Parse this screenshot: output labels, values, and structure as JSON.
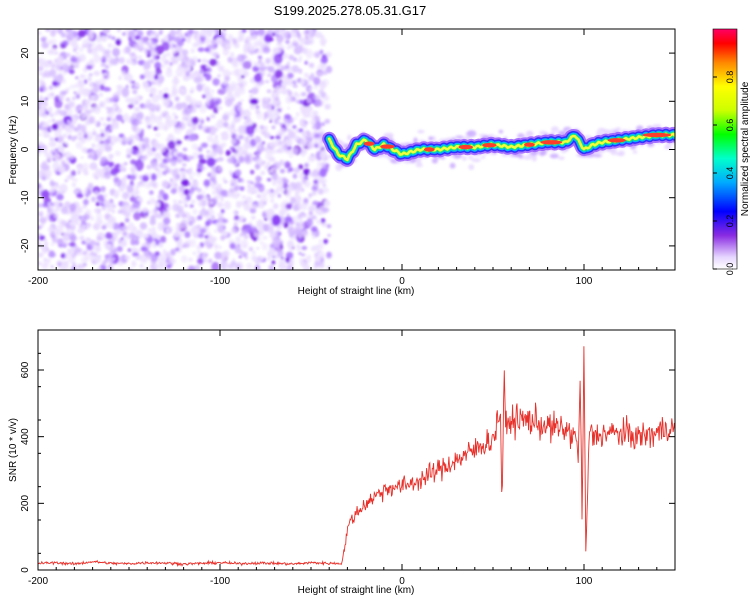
{
  "title": "S199.2025.278.05.31.G17",
  "colors": {
    "snr_line": "#e8302a",
    "frame": "#000000",
    "background": "#ffffff"
  },
  "chart_data": [
    {
      "type": "heatmap",
      "xlabel": "Height of straight line (km)",
      "ylabel": "Frequency (Hz)",
      "xlim": [
        -200,
        150
      ],
      "ylim": [
        -25,
        25
      ],
      "x_ticks": [
        -200,
        -100,
        0,
        100
      ],
      "y_ticks": [
        -20,
        -10,
        0,
        10,
        20
      ],
      "noise_region_x": [
        -200,
        -40
      ],
      "signal_start_x": -40,
      "ridge": {
        "x": [
          -40,
          -35,
          -30,
          -25,
          -20,
          -15,
          -10,
          -5,
          0,
          10,
          20,
          30,
          40,
          50,
          60,
          70,
          80,
          90,
          95,
          100,
          105,
          110,
          120,
          130,
          140,
          150
        ],
        "frequency": [
          2,
          -1,
          -2,
          1,
          2,
          0,
          1,
          0,
          -1,
          0,
          0,
          0.5,
          0.5,
          1,
          0.5,
          1,
          1.5,
          1.5,
          3,
          0,
          1,
          1.5,
          2,
          2.5,
          3,
          3
        ]
      },
      "colorbar": {
        "label": "Normalized spectral amplitude",
        "min": 0,
        "max": 1,
        "ticks": [
          "0.0",
          "0.2",
          "0.4",
          "0.6",
          "0.8"
        ]
      }
    },
    {
      "type": "line",
      "xlabel": "Height of straight line (km)",
      "ylabel": "SNR (10 * v/v)",
      "xlim": [
        -200,
        150
      ],
      "ylim": [
        0,
        720
      ],
      "x_ticks": [
        -200,
        -100,
        0,
        100
      ],
      "y_ticks": [
        0,
        200,
        400,
        600
      ],
      "series": [
        {
          "x": [
            -200,
            -190,
            -180,
            -170,
            -160,
            -150,
            -140,
            -130,
            -120,
            -110,
            -100,
            -90,
            -80,
            -70,
            -60,
            -50,
            -40,
            -33,
            -30,
            -28,
            -25,
            -20,
            -15,
            -10,
            -5,
            0,
            10,
            20,
            30,
            40,
            45,
            50,
            54,
            55,
            56,
            57,
            60,
            70,
            80,
            90,
            95,
            97,
            98,
            99,
            100,
            101,
            103,
            105,
            110,
            120,
            130,
            140,
            145,
            150
          ],
          "y": [
            20,
            22,
            18,
            25,
            20,
            19,
            22,
            21,
            18,
            20,
            22,
            19,
            21,
            20,
            18,
            22,
            20,
            20,
            120,
            150,
            170,
            200,
            220,
            240,
            250,
            250,
            270,
            300,
            330,
            360,
            380,
            390,
            480,
            200,
            560,
            430,
            450,
            450,
            430,
            420,
            400,
            350,
            600,
            100,
            700,
            50,
            420,
            400,
            410,
            410,
            400,
            410,
            430,
            420
          ]
        }
      ]
    }
  ]
}
